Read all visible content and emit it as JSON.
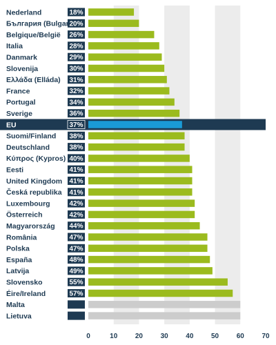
{
  "chart_data": {
    "type": "bar",
    "orientation": "horizontal",
    "categories": [
      "Nederland",
      "България (Bulgaria)",
      "Belgique/België",
      "Italia",
      "Danmark",
      "Slovenija",
      "Ελλάδα (Elláda)",
      "France",
      "Portugal",
      "Sverige",
      "EU",
      "Suomi/Finland",
      "Deutschland",
      "Κύπρος (Kypros)",
      "Eesti",
      "United Kingdom",
      "Česká republika",
      "Luxembourg",
      "Österreich",
      "Magyarország",
      "România",
      "Polska",
      "España",
      "Latvija",
      "Slovensko",
      "Éire/Ireland",
      "Malta",
      "Lietuva"
    ],
    "values": [
      18,
      20,
      26,
      28,
      29,
      30,
      31,
      32,
      34,
      36,
      37,
      38,
      38,
      40,
      41,
      41,
      41,
      42,
      42,
      44,
      47,
      47,
      48,
      49,
      55,
      57,
      null,
      null
    ],
    "value_labels": [
      "18%",
      "20%",
      "26%",
      "28%",
      "29%",
      "30%",
      "31%",
      "32%",
      "34%",
      "36%",
      "37%",
      "38%",
      "38%",
      "40%",
      "41%",
      "41%",
      "41%",
      "42%",
      "42%",
      "44%",
      "47%",
      "47%",
      "48%",
      "49%",
      "55%",
      "57%",
      "",
      ""
    ],
    "highlight_category": "EU",
    "missing_bar_value": 60,
    "x_ticks": [
      "0",
      "10",
      "20",
      "30",
      "40",
      "50",
      "60",
      "70"
    ],
    "xlim": [
      0,
      70
    ],
    "colors": {
      "bar": "#9bbb1e",
      "highlight_bar": "#1a9ad6",
      "missing_bar": "#cccccc",
      "label_box": "#1e3a52",
      "highlight_row": "#1e3a52",
      "band": "#ececec"
    },
    "grid": "alternating vertical bands"
  }
}
